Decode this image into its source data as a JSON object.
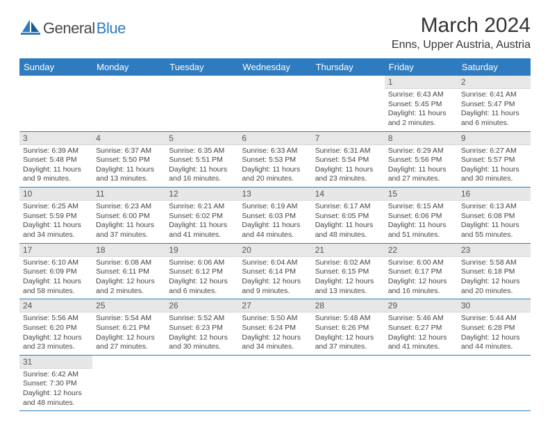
{
  "brand": {
    "name_part1": "General",
    "name_part2": "Blue",
    "color_primary": "#2f7bbf",
    "color_text": "#4a4a4a"
  },
  "title": "March 2024",
  "location": "Enns, Upper Austria, Austria",
  "weekdays": [
    "Sunday",
    "Monday",
    "Tuesday",
    "Wednesday",
    "Thursday",
    "Friday",
    "Saturday"
  ],
  "colors": {
    "header_bg": "#2f7bbf",
    "header_fg": "#ffffff",
    "daynum_bg": "#e7e7e7",
    "row_border": "#2f7bbf"
  },
  "weeks": [
    [
      null,
      null,
      null,
      null,
      null,
      {
        "n": "1",
        "sr": "Sunrise: 6:43 AM",
        "ss": "Sunset: 5:45 PM",
        "dl": "Daylight: 11 hours and 2 minutes."
      },
      {
        "n": "2",
        "sr": "Sunrise: 6:41 AM",
        "ss": "Sunset: 5:47 PM",
        "dl": "Daylight: 11 hours and 6 minutes."
      }
    ],
    [
      {
        "n": "3",
        "sr": "Sunrise: 6:39 AM",
        "ss": "Sunset: 5:48 PM",
        "dl": "Daylight: 11 hours and 9 minutes."
      },
      {
        "n": "4",
        "sr": "Sunrise: 6:37 AM",
        "ss": "Sunset: 5:50 PM",
        "dl": "Daylight: 11 hours and 13 minutes."
      },
      {
        "n": "5",
        "sr": "Sunrise: 6:35 AM",
        "ss": "Sunset: 5:51 PM",
        "dl": "Daylight: 11 hours and 16 minutes."
      },
      {
        "n": "6",
        "sr": "Sunrise: 6:33 AM",
        "ss": "Sunset: 5:53 PM",
        "dl": "Daylight: 11 hours and 20 minutes."
      },
      {
        "n": "7",
        "sr": "Sunrise: 6:31 AM",
        "ss": "Sunset: 5:54 PM",
        "dl": "Daylight: 11 hours and 23 minutes."
      },
      {
        "n": "8",
        "sr": "Sunrise: 6:29 AM",
        "ss": "Sunset: 5:56 PM",
        "dl": "Daylight: 11 hours and 27 minutes."
      },
      {
        "n": "9",
        "sr": "Sunrise: 6:27 AM",
        "ss": "Sunset: 5:57 PM",
        "dl": "Daylight: 11 hours and 30 minutes."
      }
    ],
    [
      {
        "n": "10",
        "sr": "Sunrise: 6:25 AM",
        "ss": "Sunset: 5:59 PM",
        "dl": "Daylight: 11 hours and 34 minutes."
      },
      {
        "n": "11",
        "sr": "Sunrise: 6:23 AM",
        "ss": "Sunset: 6:00 PM",
        "dl": "Daylight: 11 hours and 37 minutes."
      },
      {
        "n": "12",
        "sr": "Sunrise: 6:21 AM",
        "ss": "Sunset: 6:02 PM",
        "dl": "Daylight: 11 hours and 41 minutes."
      },
      {
        "n": "13",
        "sr": "Sunrise: 6:19 AM",
        "ss": "Sunset: 6:03 PM",
        "dl": "Daylight: 11 hours and 44 minutes."
      },
      {
        "n": "14",
        "sr": "Sunrise: 6:17 AM",
        "ss": "Sunset: 6:05 PM",
        "dl": "Daylight: 11 hours and 48 minutes."
      },
      {
        "n": "15",
        "sr": "Sunrise: 6:15 AM",
        "ss": "Sunset: 6:06 PM",
        "dl": "Daylight: 11 hours and 51 minutes."
      },
      {
        "n": "16",
        "sr": "Sunrise: 6:13 AM",
        "ss": "Sunset: 6:08 PM",
        "dl": "Daylight: 11 hours and 55 minutes."
      }
    ],
    [
      {
        "n": "17",
        "sr": "Sunrise: 6:10 AM",
        "ss": "Sunset: 6:09 PM",
        "dl": "Daylight: 11 hours and 58 minutes."
      },
      {
        "n": "18",
        "sr": "Sunrise: 6:08 AM",
        "ss": "Sunset: 6:11 PM",
        "dl": "Daylight: 12 hours and 2 minutes."
      },
      {
        "n": "19",
        "sr": "Sunrise: 6:06 AM",
        "ss": "Sunset: 6:12 PM",
        "dl": "Daylight: 12 hours and 6 minutes."
      },
      {
        "n": "20",
        "sr": "Sunrise: 6:04 AM",
        "ss": "Sunset: 6:14 PM",
        "dl": "Daylight: 12 hours and 9 minutes."
      },
      {
        "n": "21",
        "sr": "Sunrise: 6:02 AM",
        "ss": "Sunset: 6:15 PM",
        "dl": "Daylight: 12 hours and 13 minutes."
      },
      {
        "n": "22",
        "sr": "Sunrise: 6:00 AM",
        "ss": "Sunset: 6:17 PM",
        "dl": "Daylight: 12 hours and 16 minutes."
      },
      {
        "n": "23",
        "sr": "Sunrise: 5:58 AM",
        "ss": "Sunset: 6:18 PM",
        "dl": "Daylight: 12 hours and 20 minutes."
      }
    ],
    [
      {
        "n": "24",
        "sr": "Sunrise: 5:56 AM",
        "ss": "Sunset: 6:20 PM",
        "dl": "Daylight: 12 hours and 23 minutes."
      },
      {
        "n": "25",
        "sr": "Sunrise: 5:54 AM",
        "ss": "Sunset: 6:21 PM",
        "dl": "Daylight: 12 hours and 27 minutes."
      },
      {
        "n": "26",
        "sr": "Sunrise: 5:52 AM",
        "ss": "Sunset: 6:23 PM",
        "dl": "Daylight: 12 hours and 30 minutes."
      },
      {
        "n": "27",
        "sr": "Sunrise: 5:50 AM",
        "ss": "Sunset: 6:24 PM",
        "dl": "Daylight: 12 hours and 34 minutes."
      },
      {
        "n": "28",
        "sr": "Sunrise: 5:48 AM",
        "ss": "Sunset: 6:26 PM",
        "dl": "Daylight: 12 hours and 37 minutes."
      },
      {
        "n": "29",
        "sr": "Sunrise: 5:46 AM",
        "ss": "Sunset: 6:27 PM",
        "dl": "Daylight: 12 hours and 41 minutes."
      },
      {
        "n": "30",
        "sr": "Sunrise: 5:44 AM",
        "ss": "Sunset: 6:28 PM",
        "dl": "Daylight: 12 hours and 44 minutes."
      }
    ],
    [
      {
        "n": "31",
        "sr": "Sunrise: 6:42 AM",
        "ss": "Sunset: 7:30 PM",
        "dl": "Daylight: 12 hours and 48 minutes."
      },
      null,
      null,
      null,
      null,
      null,
      null
    ]
  ]
}
